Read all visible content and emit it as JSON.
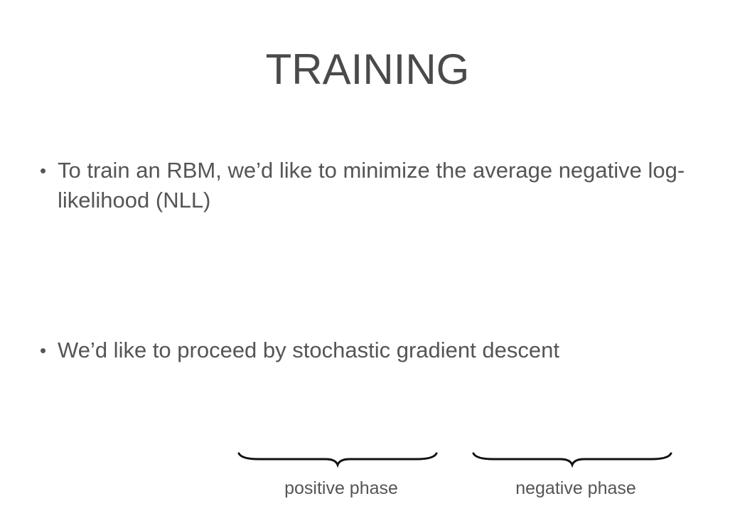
{
  "slide": {
    "title": "TRAINING",
    "bullets": [
      {
        "marker": "•",
        "text": "To train an RBM, we’d like to minimize the average negative log-likelihood (NLL)"
      },
      {
        "marker": "•",
        "text": "We’d like to proceed by stochastic gradient descent"
      }
    ],
    "braces": [
      {
        "label": "positive phase"
      },
      {
        "label": "negative phase"
      }
    ]
  }
}
